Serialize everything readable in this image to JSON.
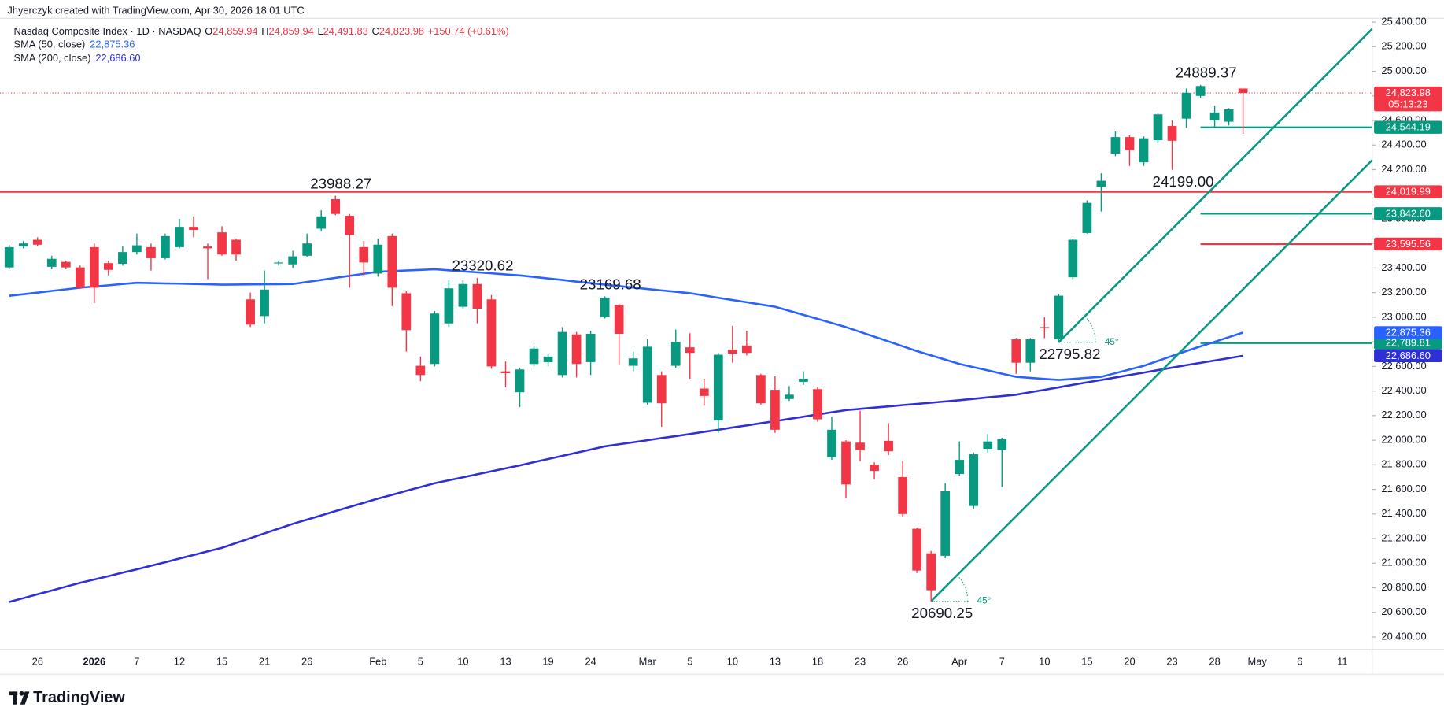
{
  "attribution": "Jhyerczyk created with TradingView.com, Apr 30, 2026 18:01 UTC",
  "brand": "TradingView",
  "chart_data": {
    "type": "candlestick",
    "legend": {
      "title": "Nasdaq Composite Index · 1D · NASDAQ",
      "ohlc": [
        {
          "key": "O",
          "text": "24,859.94"
        },
        {
          "key": "H",
          "text": "24,859.94"
        },
        {
          "key": "L",
          "text": "24,491.83"
        },
        {
          "key": "C",
          "text": "24,823.98"
        }
      ],
      "change": "+150.74 (+0.61%)"
    },
    "up_color": "#089981",
    "down_color": "#f23645",
    "grid": false,
    "ylim": [
      20300,
      25430
    ],
    "yticks": [
      {
        "value": 20400,
        "label": "20,400.00"
      },
      {
        "value": 20600,
        "label": "20,600.00"
      },
      {
        "value": 20800,
        "label": "20,800.00"
      },
      {
        "value": 21000,
        "label": "21,000.00"
      },
      {
        "value": 21200,
        "label": "21,200.00"
      },
      {
        "value": 21400,
        "label": "21,400.00"
      },
      {
        "value": 21600,
        "label": "21,600.00"
      },
      {
        "value": 21800,
        "label": "21,800.00"
      },
      {
        "value": 22000,
        "label": "22,000.00"
      },
      {
        "value": 22200,
        "label": "22,200.00"
      },
      {
        "value": 22400,
        "label": "22,400.00"
      },
      {
        "value": 22600,
        "label": "22,600.00"
      },
      {
        "value": 22800,
        "label": "22,800.00"
      },
      {
        "value": 23000,
        "label": "23,000.00"
      },
      {
        "value": 23200,
        "label": "23,200.00"
      },
      {
        "value": 23400,
        "label": "23,400.00"
      },
      {
        "value": 23600,
        "label": "23,600.00"
      },
      {
        "value": 23800,
        "label": "23,800.00"
      },
      {
        "value": 24000,
        "label": "24,000.00"
      },
      {
        "value": 24200,
        "label": "24,200.00"
      },
      {
        "value": 24400,
        "label": "24,400.00"
      },
      {
        "value": 24600,
        "label": "24,600.00"
      },
      {
        "value": 24800,
        "label": "24,800.00"
      },
      {
        "value": 25000,
        "label": "25,000.00"
      },
      {
        "value": 25200,
        "label": "25,200.00"
      },
      {
        "value": 25400,
        "label": "25,400.00"
      }
    ],
    "categories": [
      null,
      null,
      "26",
      null,
      null,
      null,
      "2026",
      null,
      null,
      "7",
      null,
      null,
      "12",
      null,
      null,
      "15",
      null,
      null,
      "21",
      null,
      null,
      "26",
      null,
      null,
      null,
      null,
      "Feb",
      null,
      null,
      "5",
      null,
      null,
      "10",
      null,
      null,
      "13",
      null,
      null,
      "19",
      null,
      null,
      "24",
      null,
      null,
      null,
      "Mar",
      null,
      null,
      "5",
      null,
      null,
      "10",
      null,
      null,
      "13",
      null,
      null,
      "18",
      null,
      null,
      "23",
      null,
      null,
      "26",
      null,
      null,
      null,
      "Apr",
      null,
      null,
      "7",
      null,
      null,
      "10",
      null,
      null,
      "15",
      null,
      null,
      "20",
      null,
      null,
      "23",
      null,
      null,
      "28",
      null,
      null,
      "May",
      null,
      null,
      "6",
      null,
      null,
      "11",
      null,
      null
    ],
    "open": [
      23405,
      23575,
      23630,
      23410,
      23450,
      23405,
      23570,
      23440,
      23435,
      23530,
      23570,
      23480,
      23570,
      23735,
      23575,
      23690,
      23630,
      23145,
      23010,
      23440,
      23430,
      23500,
      23720,
      23960,
      23825,
      23570,
      23355,
      23660,
      23195,
      22605,
      22620,
      22950,
      23085,
      23270,
      23145,
      22560,
      22390,
      22620,
      22635,
      22530,
      22860,
      22635,
      23000,
      23100,
      22605,
      22305,
      22530,
      22605,
      22755,
      22420,
      22160,
      22735,
      22770,
      22530,
      22410,
      22335,
      22475,
      22415,
      21860,
      21990,
      21980,
      21800,
      21995,
      21700,
      21280,
      21080,
      21060,
      21725,
      21465,
      21930,
      21920,
      22820,
      22630,
      22920,
      22820,
      23325,
      23685,
      24060,
      24330,
      24465,
      24260,
      24440,
      24555,
      24615,
      24800,
      24600,
      24590,
      24859.94,
      null,
      null,
      null,
      null,
      null,
      null,
      null,
      null,
      null
    ],
    "high": [
      23590,
      23620,
      23650,
      23500,
      23460,
      23420,
      23600,
      23460,
      23580,
      23680,
      23600,
      23680,
      23800,
      23820,
      23600,
      23740,
      23640,
      23200,
      23380,
      23460,
      23540,
      23680,
      23870,
      23988.27,
      23840,
      23620,
      23640,
      23680,
      23210,
      22680,
      23050,
      23300,
      23300,
      23320.62,
      23180,
      22640,
      22590,
      22770,
      22700,
      22920,
      22880,
      22890,
      23169.68,
      23110,
      22720,
      22820,
      22560,
      22900,
      22870,
      22500,
      22710,
      22930,
      22890,
      22540,
      22520,
      22440,
      22560,
      22430,
      22190,
      22000,
      22240,
      21820,
      22140,
      21830,
      21290,
      21100,
      21650,
      21990,
      21900,
      22050,
      22020,
      22830,
      22830,
      23000,
      23190,
      23640,
      23950,
      24170,
      24510,
      24480,
      24470,
      24660,
      24600,
      24860,
      24889.37,
      24720,
      24700,
      24859.94,
      null,
      null,
      null,
      null,
      null,
      null,
      null,
      null,
      null
    ],
    "low": [
      23390,
      23560,
      23580,
      23390,
      23390,
      23230,
      23115,
      23340,
      23420,
      23510,
      23380,
      23470,
      23560,
      23650,
      23310,
      23500,
      23460,
      22920,
      22950,
      23420,
      23400,
      23490,
      23700,
      23830,
      23240,
      23340,
      23330,
      23090,
      22720,
      22480,
      22600,
      22920,
      23070,
      22950,
      22580,
      22430,
      22270,
      22600,
      22600,
      22510,
      22510,
      22530,
      22990,
      22610,
      22560,
      22290,
      22110,
      22590,
      22500,
      22280,
      22060,
      22630,
      22690,
      22290,
      22060,
      22320,
      22450,
      22150,
      21840,
      21530,
      21830,
      21680,
      21880,
      21380,
      20920,
      20690.25,
      21040,
      21710,
      21440,
      21900,
      21620,
      22540,
      22560,
      22830,
      22795.82,
      23310,
      23680,
      23860,
      24310,
      24230,
      24230,
      24420,
      24199,
      24540,
      24780,
      24540,
      24560,
      24491.83,
      null,
      null,
      null,
      null,
      null,
      null,
      null,
      null,
      null
    ],
    "close": [
      23570,
      23600,
      23590,
      23475,
      23405,
      23240,
      23240,
      23385,
      23530,
      23585,
      23480,
      23660,
      23735,
      23710,
      23560,
      23510,
      23510,
      22940,
      23225,
      23445,
      23495,
      23600,
      23820,
      23840,
      23670,
      23445,
      23590,
      23240,
      22895,
      22530,
      23030,
      23235,
      23270,
      23070,
      22600,
      22545,
      22575,
      22745,
      22680,
      22880,
      22620,
      22865,
      23160,
      22865,
      22665,
      22760,
      22300,
      22800,
      22710,
      22360,
      22695,
      22705,
      22710,
      22300,
      22085,
      22370,
      22500,
      22170,
      22085,
      21640,
      21920,
      21750,
      21910,
      21400,
      20940,
      20780,
      21585,
      21840,
      21885,
      21990,
      22010,
      22630,
      22820,
      22915,
      23175,
      23630,
      23930,
      24110,
      24465,
      24360,
      24455,
      24650,
      24435,
      24825,
      24880,
      24665,
      24690,
      24823.98,
      null,
      null,
      null,
      null,
      null,
      null,
      null,
      null,
      null
    ],
    "high_labels": [
      null,
      null,
      null,
      null,
      null,
      null,
      null,
      null,
      null,
      null,
      null,
      null,
      null,
      null,
      null,
      null,
      null,
      null,
      null,
      null,
      null,
      null,
      null,
      "23988.27",
      null,
      null,
      null,
      null,
      null,
      null,
      null,
      null,
      null,
      "23320.62",
      null,
      null,
      null,
      null,
      null,
      null,
      null,
      null,
      "23169.68",
      null,
      null,
      null,
      null,
      null,
      null,
      null,
      null,
      null,
      null,
      null,
      null,
      null,
      null,
      null,
      null,
      null,
      null,
      null,
      null,
      null,
      null,
      null,
      null,
      null,
      null,
      null,
      null,
      null,
      null,
      null,
      null,
      null,
      null,
      null,
      null,
      null,
      null,
      null,
      null,
      null,
      "24889.37",
      null,
      null,
      null,
      null,
      null,
      null,
      null,
      null,
      null,
      null,
      null,
      null
    ],
    "low_labels": [
      null,
      null,
      null,
      null,
      null,
      null,
      null,
      null,
      null,
      null,
      null,
      null,
      null,
      null,
      null,
      null,
      null,
      null,
      null,
      null,
      null,
      null,
      null,
      null,
      null,
      null,
      null,
      null,
      null,
      null,
      null,
      null,
      null,
      null,
      null,
      null,
      null,
      null,
      null,
      null,
      null,
      null,
      null,
      null,
      null,
      null,
      null,
      null,
      null,
      null,
      null,
      null,
      null,
      null,
      null,
      null,
      null,
      null,
      null,
      null,
      null,
      null,
      null,
      null,
      null,
      "20690.25",
      null,
      null,
      null,
      null,
      null,
      null,
      null,
      null,
      "22795.82",
      null,
      null,
      null,
      null,
      null,
      null,
      null,
      "24199.00",
      null,
      null,
      null,
      null,
      null,
      null,
      null,
      null,
      null,
      null,
      null,
      null,
      null,
      null
    ],
    "last_label": "24,823.98",
    "countdown": "05:13:23",
    "series": [
      {
        "name": "SMA (50, close)",
        "color": "#2962ff",
        "last_label": "22,875.36",
        "values": [
          23174,
          23187,
          23200,
          23214,
          23227,
          23240,
          23250,
          23260,
          23270,
          23280,
          23278,
          23275,
          23273,
          23270,
          23268,
          23265,
          23266,
          23267,
          23268,
          23269,
          23270,
          23287,
          23303,
          23320,
          23337,
          23353,
          23370,
          23375,
          23380,
          23385,
          23390,
          23382,
          23373,
          23365,
          23357,
          23348,
          23340,
          23328,
          23315,
          23303,
          23290,
          23278,
          23265,
          23253,
          23242,
          23230,
          23218,
          23207,
          23195,
          23177,
          23158,
          23140,
          23122,
          23103,
          23085,
          23052,
          23019,
          22986,
          22953,
          22920,
          22881,
          22842,
          22803,
          22764,
          22725,
          22690,
          22655,
          22620,
          22594,
          22568,
          22541,
          22515,
          22507,
          22498,
          22490,
          22498,
          22507,
          22515,
          22545,
          22575,
          22605,
          22645,
          22685,
          22725,
          22763,
          22800,
          22838,
          22875.36,
          null,
          null,
          null,
          null,
          null,
          null,
          null,
          null,
          null
        ]
      },
      {
        "name": "SMA (200, close)",
        "color": "#2f2fd8",
        "last_label": "22,686.60",
        "values": [
          20685,
          20716,
          20747,
          20778,
          20809,
          20840,
          20868,
          20895,
          20923,
          20950,
          20979,
          21008,
          21038,
          21067,
          21096,
          21125,
          21164,
          21203,
          21242,
          21281,
          21320,
          21354,
          21388,
          21423,
          21457,
          21491,
          21525,
          21556,
          21588,
          21619,
          21650,
          21674,
          21698,
          21723,
          21747,
          21771,
          21795,
          21821,
          21847,
          21873,
          21898,
          21924,
          21950,
          21967,
          21983,
          22000,
          22017,
          22033,
          22050,
          22068,
          22085,
          22103,
          22120,
          22138,
          22155,
          22173,
          22191,
          22209,
          22227,
          22245,
          22255,
          22265,
          22275,
          22285,
          22295,
          22305,
          22315,
          22325,
          22336,
          22348,
          22359,
          22370,
          22390,
          22410,
          22430,
          22450,
          22470,
          22490,
          22510,
          22530,
          22550,
          22570,
          22590,
          22610,
          22629,
          22648,
          22667,
          22686.6,
          null,
          null,
          null,
          null,
          null,
          null,
          null,
          null,
          null
        ]
      }
    ],
    "price_lines": [
      {
        "value": 24544.19,
        "label": "24,544.19",
        "color": "#089981",
        "extend": "right"
      },
      {
        "value": 24019.99,
        "label": "24,019.99",
        "color": "#f23645",
        "extend": "full"
      },
      {
        "value": 23842.6,
        "label": "23,842.60",
        "color": "#089981",
        "extend": "right"
      },
      {
        "value": 23595.56,
        "label": "23,595.56",
        "color": "#f23645",
        "extend": "right"
      },
      {
        "value": 22789.81,
        "label": "22,789.81",
        "color": "#089981",
        "extend": "right"
      }
    ],
    "trend_lines": [
      {
        "angle_label": "45°",
        "color": "#089981"
      },
      {
        "angle_label": "45°",
        "color": "#089981"
      }
    ]
  }
}
